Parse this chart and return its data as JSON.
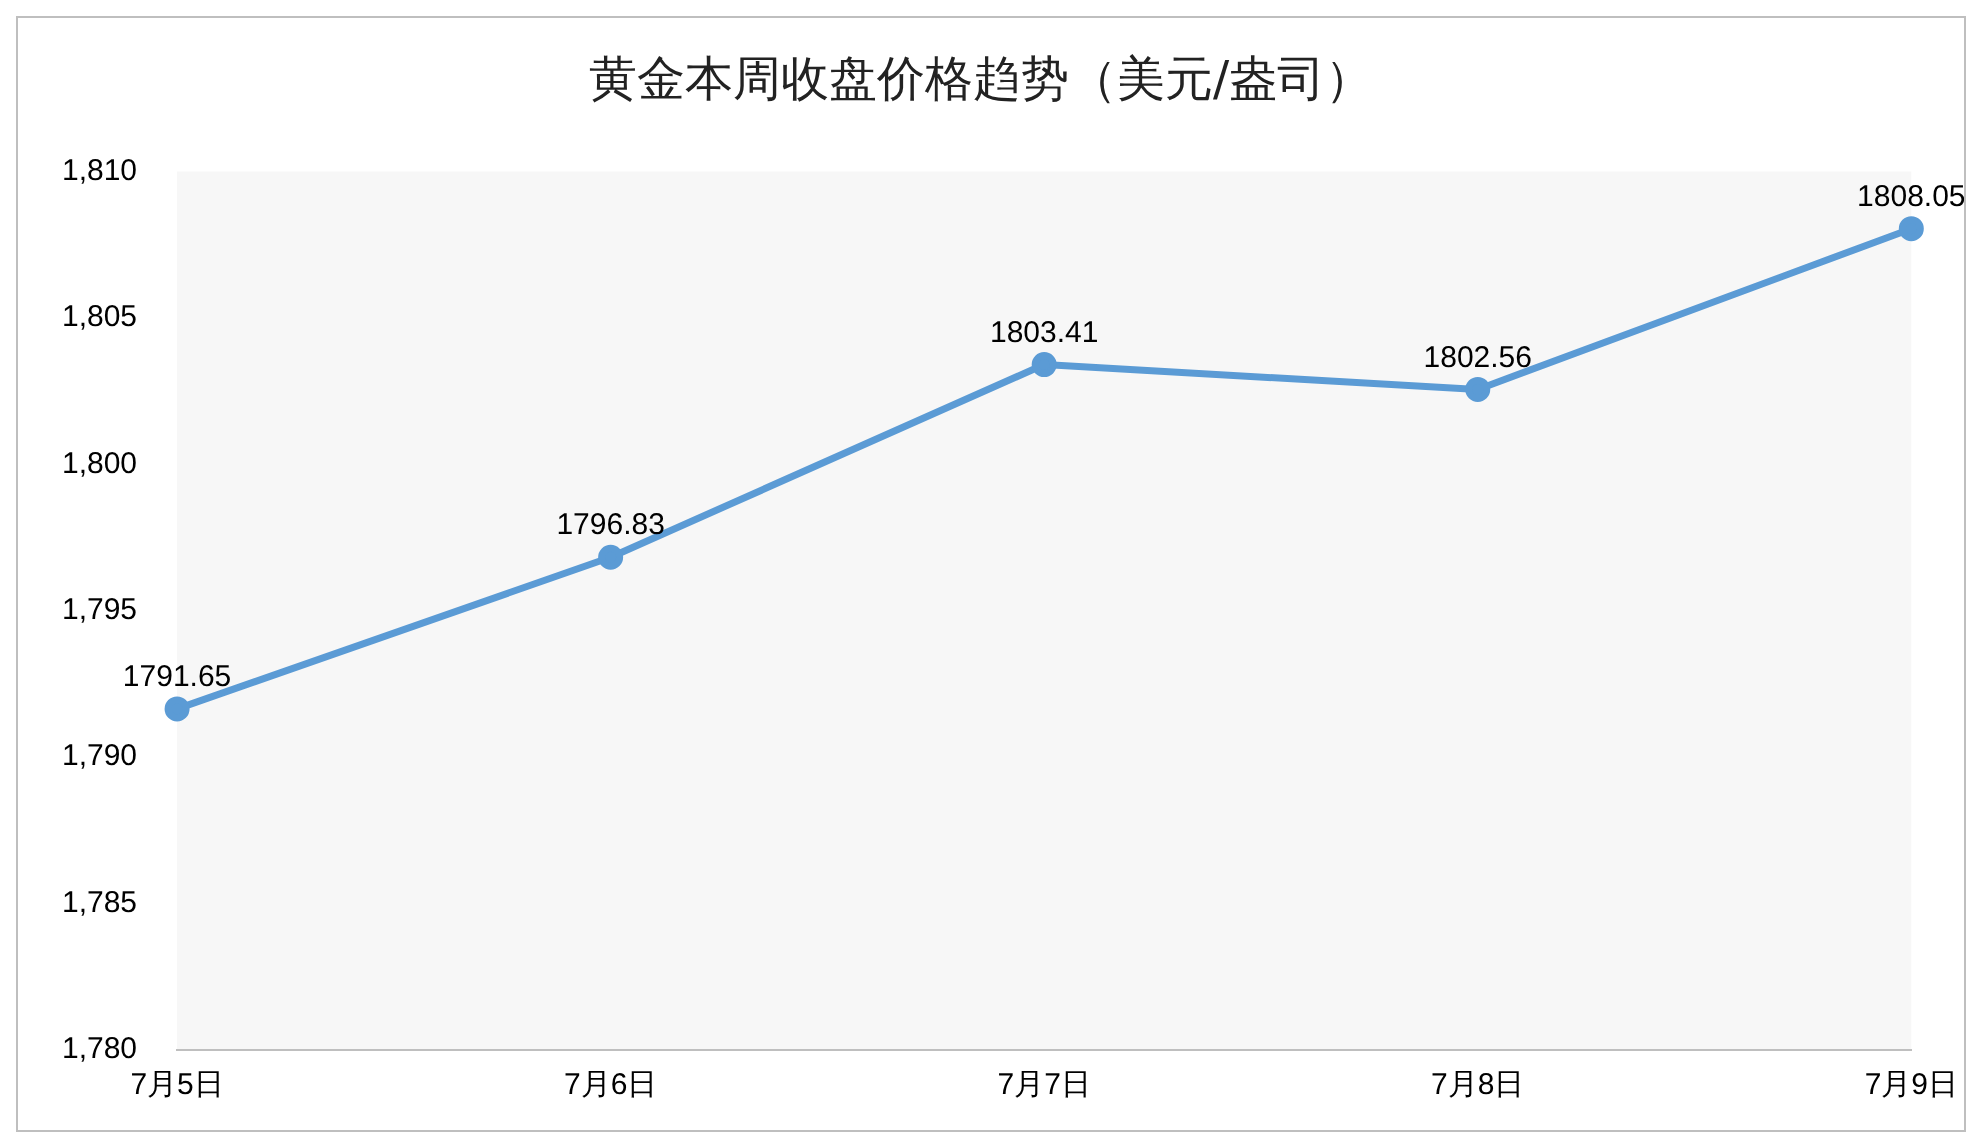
{
  "chart_data": {
    "type": "line",
    "title": "黄金本周收盘价格趋势（美元/盎司）",
    "categories": [
      "7月5日",
      "7月6日",
      "7月7日",
      "7月8日",
      "7月9日"
    ],
    "series": [
      {
        "color": "#5b9bd5",
        "values": [
          1791.65,
          1796.83,
          1803.41,
          1802.56,
          1808.05
        ]
      }
    ],
    "ylim": [
      1780,
      1810
    ],
    "yticks": [
      {
        "value": 1780,
        "label": "1,780"
      },
      {
        "value": 1785,
        "label": "1,785"
      },
      {
        "value": 1790,
        "label": "1,790"
      },
      {
        "value": 1795,
        "label": "1,795"
      },
      {
        "value": 1800,
        "label": "1,800"
      },
      {
        "value": 1805,
        "label": "1,805"
      },
      {
        "value": 1810,
        "label": "1,810"
      }
    ],
    "data_labels": true,
    "grid": false,
    "legend": false,
    "marker": "circle",
    "line_style": "solid"
  }
}
